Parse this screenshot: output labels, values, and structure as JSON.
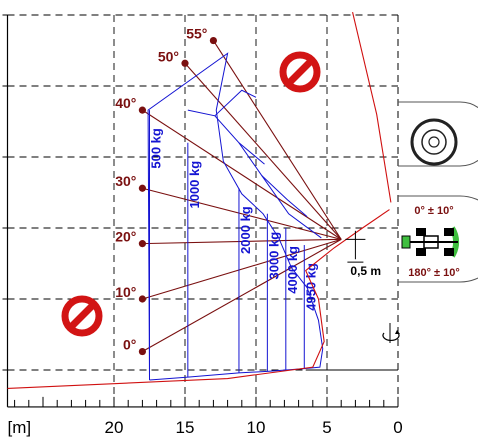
{
  "chart_data": {
    "type": "load-chart",
    "x_unit_label": "[m]",
    "x_ticks": [
      20,
      15,
      10,
      5,
      0
    ],
    "y_ticks": [
      25,
      20,
      15,
      10,
      5,
      0
    ],
    "xlim": [
      0,
      27.5
    ],
    "ylim": [
      -3,
      25
    ],
    "boom_angles": [
      {
        "label": "0°",
        "x": 18.0,
        "y": 1.3
      },
      {
        "label": "10°",
        "x": 18.0,
        "y": 5.0
      },
      {
        "label": "20°",
        "x": 18.0,
        "y": 8.9
      },
      {
        "label": "30°",
        "x": 18.0,
        "y": 12.8
      },
      {
        "label": "40°",
        "x": 18.0,
        "y": 18.3
      },
      {
        "label": "50°",
        "x": 15.0,
        "y": 21.6
      },
      {
        "label": "55°",
        "x": 13.0,
        "y": 23.2
      }
    ],
    "load_curves": [
      {
        "label": "500 kg",
        "x": 17.5
      },
      {
        "label": "1000 kg",
        "x": 14.8
      },
      {
        "label": "2000 kg",
        "x": 11.2
      },
      {
        "label": "3000 kg",
        "x": 9.2
      },
      {
        "label": "4000 kg",
        "x": 7.9
      },
      {
        "label": "4950 kg",
        "x": 6.6
      }
    ],
    "annotations": {
      "distance": "0,5 m",
      "front_tolerance": "0° ± 10°",
      "rear_tolerance": "180° ± 10°"
    }
  },
  "colors": {
    "boom_lines": "#7a1010",
    "load_lines": "#1414d2",
    "envelope": "#d01010",
    "prohibited": "#d21414",
    "tyre_green": "#3fbf3f"
  },
  "icons": [
    "no-entry-icon",
    "no-entry-icon",
    "tyre-icon",
    "machine-topview-icon",
    "rotation-icon"
  ]
}
